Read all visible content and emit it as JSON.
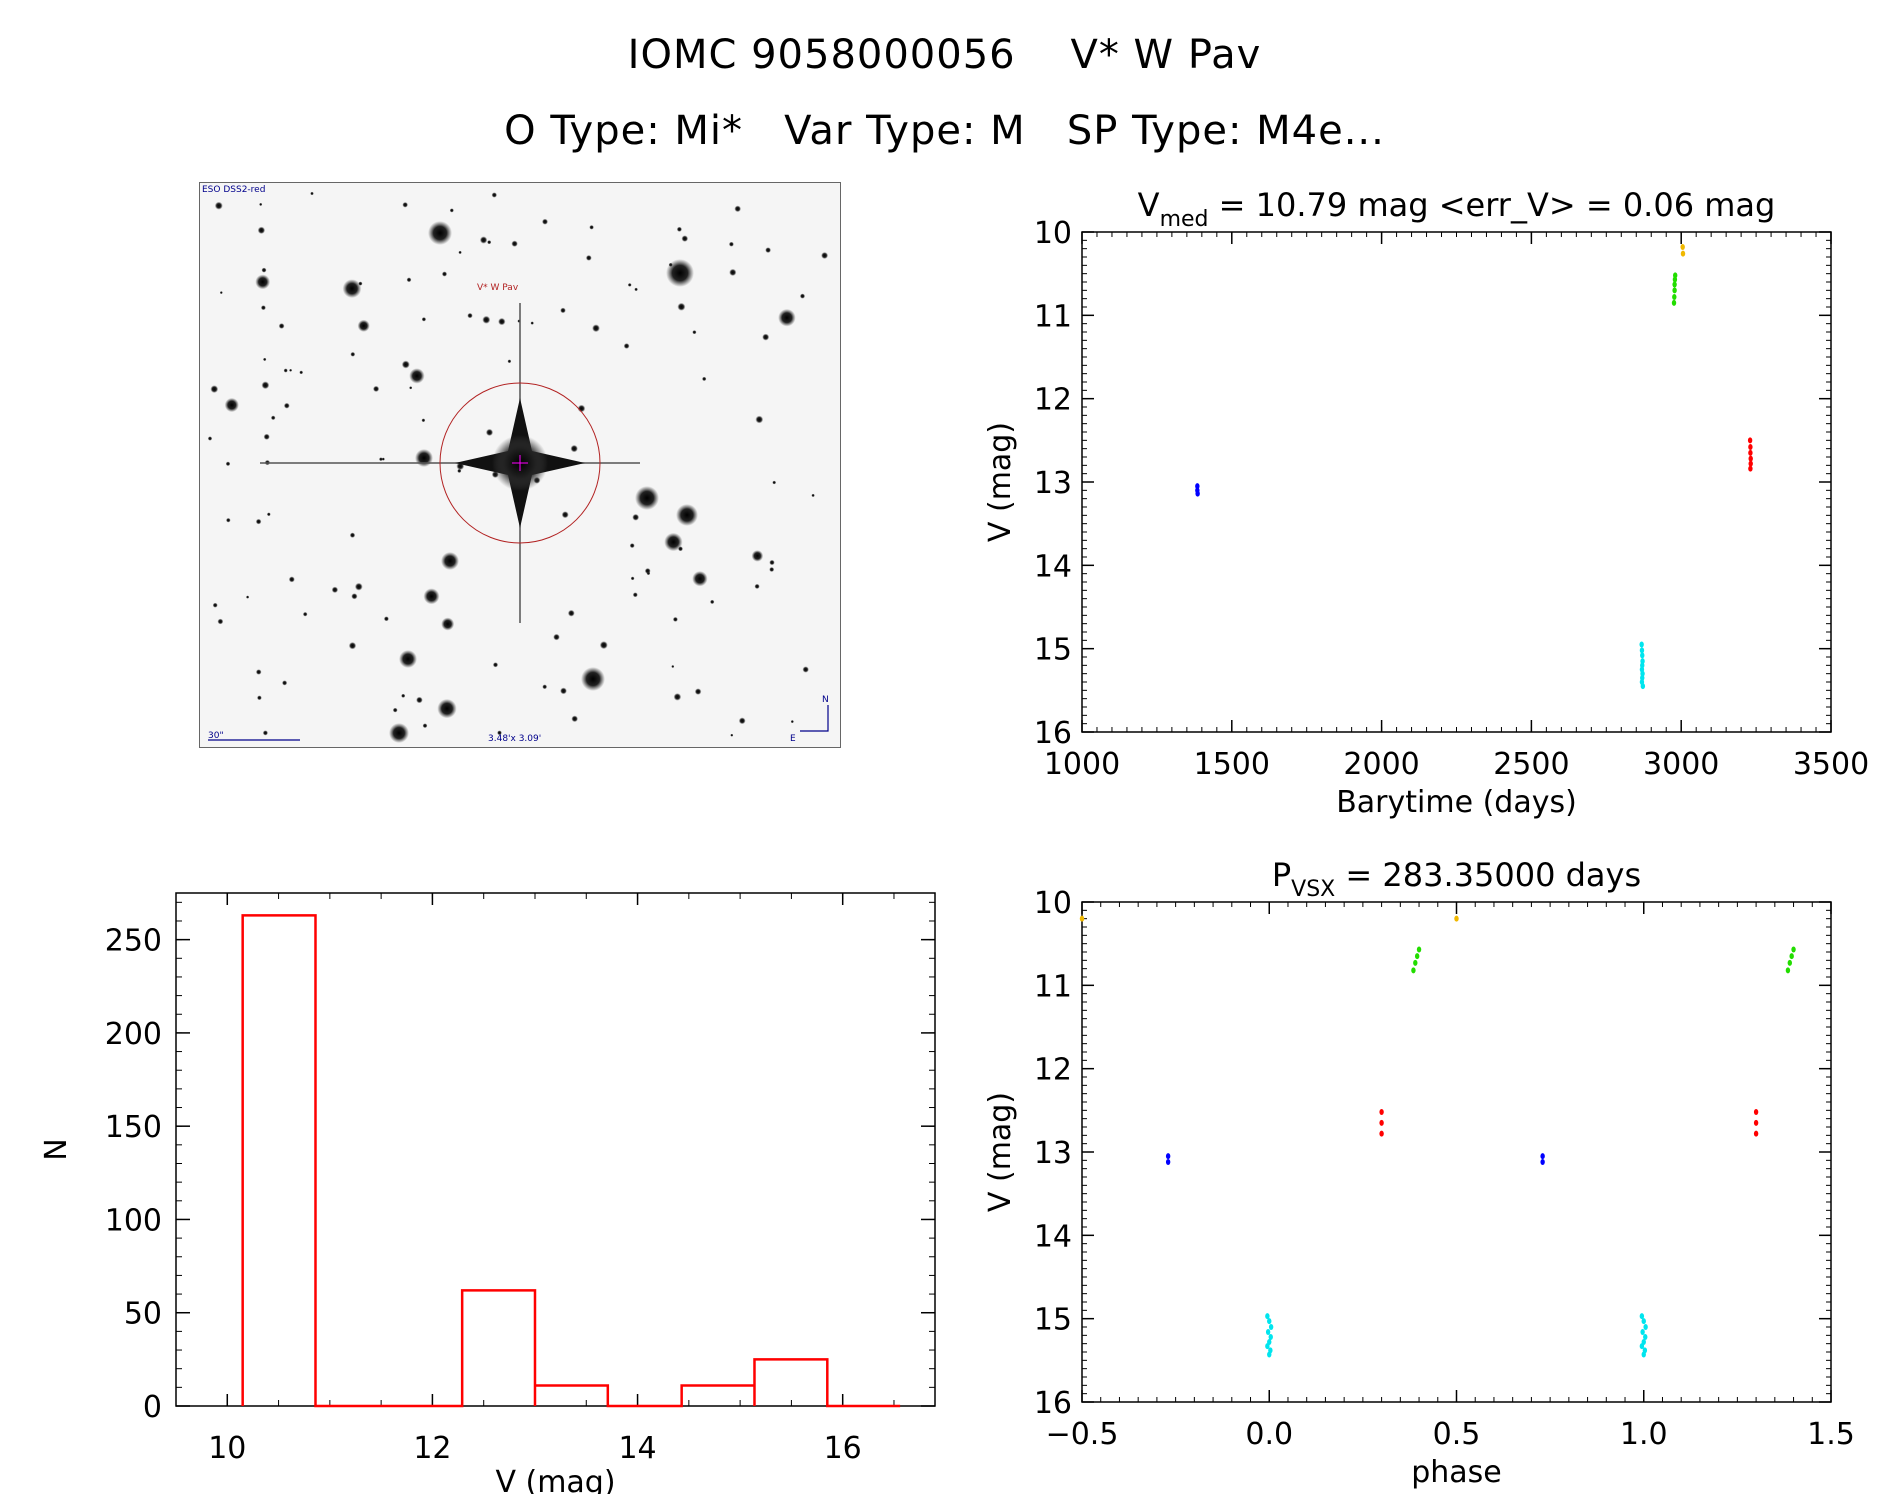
{
  "header": {
    "line1_id": "IOMC 9058000056",
    "line1_name": "V* W Pav",
    "line2_otype": "O Type: Mi*",
    "line2_vartype": "Var Type: M",
    "line2_sptype": "SP Type: M4e..."
  },
  "sky_image": {
    "survey_label": "ESO DSS2-red",
    "target_label": "V* W Pav",
    "scale_label": "30\"",
    "fov_label": "3.48'x 3.09'",
    "north_label": "N",
    "east_label": "E",
    "circle_color": "#b22222",
    "label_color": "#00008b"
  },
  "colors": {
    "blue": "#0000ff",
    "cyan": "#00e5ee",
    "green": "#22dd00",
    "yellow": "#f0b800",
    "red": "#ff0000",
    "hist": "#ff0000"
  },
  "chart_data": [
    {
      "id": "lightcurve",
      "type": "scatter",
      "title_main": "V",
      "title_sub": "med",
      "title_rest": " = 10.79 mag <err_V> = 0.06 mag",
      "xlabel": "Barytime (days)",
      "ylabel": "V (mag)",
      "xlim": [
        1000,
        3500
      ],
      "ylim": [
        16,
        10
      ],
      "xticks": [
        1000,
        1500,
        2000,
        2500,
        3000,
        3500
      ],
      "yticks": [
        10,
        11,
        12,
        13,
        14,
        15,
        16
      ],
      "series": [
        {
          "color": "blue",
          "x": [
            1385,
            1385,
            1386
          ],
          "y": [
            13.05,
            13.1,
            13.14
          ]
        },
        {
          "color": "cyan",
          "x": [
            2868,
            2869,
            2870,
            2871,
            2870,
            2869,
            2871,
            2870,
            2869,
            2872
          ],
          "y": [
            14.95,
            15.02,
            15.08,
            15.15,
            15.2,
            15.25,
            15.3,
            15.35,
            15.4,
            15.45
          ]
        },
        {
          "color": "green",
          "x": [
            2976,
            2977,
            2978,
            2978,
            2979,
            2980
          ],
          "y": [
            10.85,
            10.78,
            10.7,
            10.63,
            10.57,
            10.52
          ]
        },
        {
          "color": "yellow",
          "x": [
            3005,
            3006
          ],
          "y": [
            10.18,
            10.26
          ]
        },
        {
          "color": "red",
          "x": [
            3230,
            3231,
            3231,
            3232,
            3232,
            3231
          ],
          "y": [
            12.5,
            12.58,
            12.65,
            12.72,
            12.78,
            12.84
          ]
        }
      ]
    },
    {
      "id": "phase",
      "type": "scatter",
      "title_main": "P",
      "title_sub": "VSX",
      "title_rest": " = 283.35000 days",
      "xlabel": "phase",
      "ylabel": "V (mag)",
      "xlim": [
        -0.5,
        1.5
      ],
      "ylim": [
        16,
        10
      ],
      "xticks": [
        -0.5,
        0.0,
        0.5,
        1.0,
        1.5
      ],
      "xticklabels": [
        "−0.5",
        "0.0",
        "0.5",
        "1.0",
        "1.5"
      ],
      "yticks": [
        10,
        11,
        12,
        13,
        14,
        15,
        16
      ],
      "series": [
        {
          "color": "blue",
          "x": [
            -0.27,
            -0.27,
            0.73,
            0.73
          ],
          "y": [
            13.05,
            13.12,
            13.05,
            13.12
          ]
        },
        {
          "color": "cyan",
          "x": [
            -0.005,
            0.0,
            0.005,
            -0.003,
            0.004,
            0.0,
            -0.005,
            0.003,
            0.0,
            0.995,
            1.0,
            1.005,
            0.997,
            1.004,
            1.0,
            0.995,
            1.003,
            1.0
          ],
          "y": [
            14.97,
            15.03,
            15.1,
            15.16,
            15.22,
            15.28,
            15.33,
            15.38,
            15.43,
            14.97,
            15.03,
            15.1,
            15.16,
            15.22,
            15.28,
            15.33,
            15.38,
            15.43
          ]
        },
        {
          "color": "green",
          "x": [
            0.385,
            0.39,
            0.395,
            0.4,
            1.385,
            1.39,
            1.395,
            1.4
          ],
          "y": [
            10.82,
            10.73,
            10.65,
            10.57,
            10.82,
            10.73,
            10.65,
            10.57
          ]
        },
        {
          "color": "yellow",
          "x": [
            -0.5,
            0.5
          ],
          "y": [
            10.2,
            10.2
          ]
        },
        {
          "color": "red",
          "x": [
            0.3,
            0.3,
            0.3,
            1.3,
            1.3,
            1.3
          ],
          "y": [
            12.52,
            12.65,
            12.78,
            12.52,
            12.65,
            12.78
          ]
        }
      ]
    },
    {
      "id": "histogram",
      "type": "bar",
      "xlabel": "V (mag)",
      "ylabel": "N",
      "xlim": [
        9.5,
        16.9
      ],
      "ylim": [
        0,
        275
      ],
      "xticks": [
        10,
        12,
        14,
        16
      ],
      "yticks": [
        0,
        50,
        100,
        150,
        200,
        250
      ],
      "bins": [
        {
          "x0": 10.15,
          "x1": 10.86,
          "value": 263
        },
        {
          "x0": 10.86,
          "x1": 11.57,
          "value": 0
        },
        {
          "x0": 11.57,
          "x1": 12.29,
          "value": 0
        },
        {
          "x0": 12.29,
          "x1": 13.0,
          "value": 62
        },
        {
          "x0": 13.0,
          "x1": 13.71,
          "value": 11
        },
        {
          "x0": 13.71,
          "x1": 14.43,
          "value": 0
        },
        {
          "x0": 14.43,
          "x1": 15.14,
          "value": 11
        },
        {
          "x0": 15.14,
          "x1": 15.85,
          "value": 25
        },
        {
          "x0": 15.85,
          "x1": 16.56,
          "value": 0
        }
      ]
    }
  ]
}
